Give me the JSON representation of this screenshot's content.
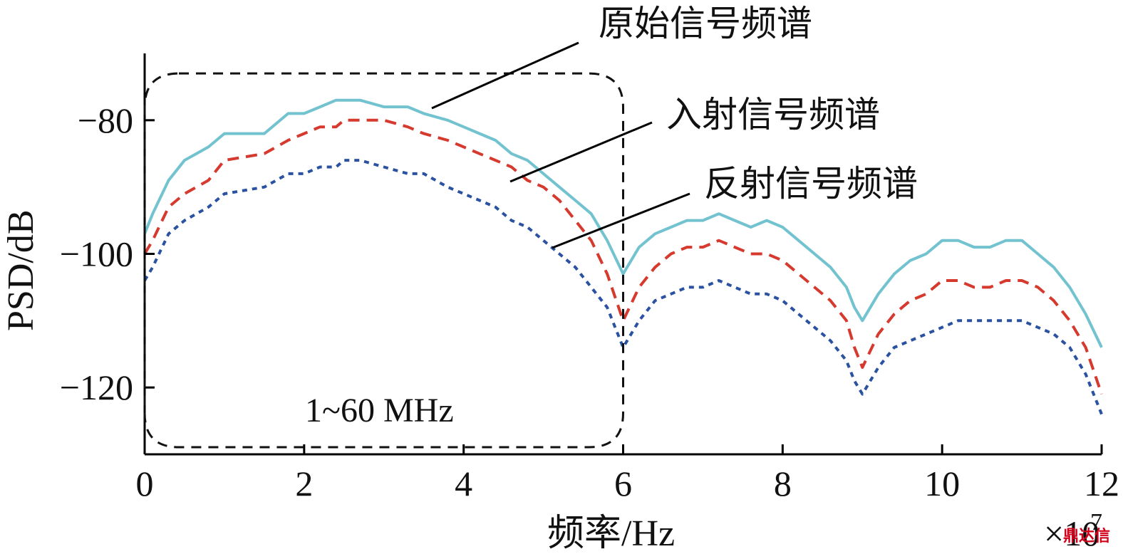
{
  "chart_data": {
    "type": "line",
    "xlabel": "频率/Hz",
    "ylabel": "PSD/dB",
    "x_multiplier": "×10",
    "x_multiplier_exp": "7",
    "xlim": [
      0,
      120000000
    ],
    "ylim": [
      -130,
      -70
    ],
    "xticks": [
      0,
      20000000,
      40000000,
      60000000,
      80000000,
      100000000,
      120000000
    ],
    "xtick_labels": [
      "0",
      "2",
      "4",
      "6",
      "8",
      "10",
      "12"
    ],
    "yticks": [
      -80,
      -100,
      -120
    ],
    "ytick_labels": [
      "−80",
      "−100",
      "−120"
    ],
    "grid": false,
    "series": [
      {
        "name": "原始信号频谱",
        "color": "#72c3cf",
        "style": "solid",
        "x": [
          0,
          1000000,
          3000000,
          5000000,
          8000000,
          10000000,
          15000000,
          18000000,
          20000000,
          22000000,
          24000000,
          25000000,
          27000000,
          30000000,
          33000000,
          35000000,
          38000000,
          40000000,
          42000000,
          44000000,
          46000000,
          48000000,
          50000000,
          52000000,
          54000000,
          56000000,
          58000000,
          60000000,
          62000000,
          64000000,
          66000000,
          68000000,
          70000000,
          72000000,
          74000000,
          76000000,
          78000000,
          80000000,
          82000000,
          84000000,
          86000000,
          88000000,
          89000000,
          90000000,
          92000000,
          94000000,
          96000000,
          98000000,
          100000000,
          102000000,
          104000000,
          106000000,
          108000000,
          110000000,
          112000000,
          114000000,
          116000000,
          118000000,
          120000000
        ],
        "y": [
          -97,
          -94,
          -89,
          -86,
          -84,
          -82,
          -82,
          -79,
          -79,
          -78,
          -77,
          -77,
          -77,
          -78,
          -78,
          -79,
          -80,
          -81,
          -82,
          -83,
          -85,
          -86,
          -88,
          -90,
          -92,
          -94,
          -98,
          -103,
          -99,
          -97,
          -96,
          -95,
          -95,
          -94,
          -95,
          -96,
          -95,
          -96,
          -98,
          -100,
          -102,
          -105,
          -108,
          -110,
          -106,
          -103,
          -101,
          -100,
          -98,
          -98,
          -99,
          -99,
          -98,
          -98,
          -100,
          -102,
          -105,
          -109,
          -114
        ]
      },
      {
        "name": "入射信号频谱",
        "color": "#d63a2f",
        "style": "dashed",
        "x": [
          0,
          1000000,
          3000000,
          5000000,
          8000000,
          10000000,
          15000000,
          18000000,
          20000000,
          22000000,
          24000000,
          25000000,
          27000000,
          30000000,
          33000000,
          35000000,
          38000000,
          40000000,
          42000000,
          44000000,
          46000000,
          48000000,
          50000000,
          52000000,
          54000000,
          56000000,
          58000000,
          60000000,
          62000000,
          64000000,
          66000000,
          68000000,
          70000000,
          72000000,
          74000000,
          76000000,
          78000000,
          80000000,
          82000000,
          84000000,
          86000000,
          88000000,
          89000000,
          90000000,
          92000000,
          94000000,
          96000000,
          98000000,
          100000000,
          102000000,
          104000000,
          106000000,
          108000000,
          110000000,
          112000000,
          114000000,
          116000000,
          118000000,
          120000000
        ],
        "y": [
          -100,
          -98,
          -93,
          -91,
          -89,
          -86,
          -85,
          -83,
          -82,
          -81,
          -81,
          -80,
          -80,
          -80,
          -81,
          -82,
          -83,
          -84,
          -85,
          -86,
          -87,
          -89,
          -90,
          -92,
          -95,
          -98,
          -103,
          -110,
          -105,
          -102,
          -100,
          -99,
          -99,
          -98,
          -99,
          -100,
          -100,
          -101,
          -103,
          -105,
          -107,
          -110,
          -114,
          -117,
          -112,
          -109,
          -107,
          -106,
          -104,
          -104,
          -105,
          -105,
          -104,
          -104,
          -105,
          -107,
          -110,
          -114,
          -121
        ]
      },
      {
        "name": "反射信号频谱",
        "color": "#2a52a0",
        "style": "dotted",
        "x": [
          0,
          1000000,
          3000000,
          5000000,
          8000000,
          10000000,
          15000000,
          18000000,
          20000000,
          22000000,
          24000000,
          25000000,
          27000000,
          30000000,
          33000000,
          35000000,
          38000000,
          40000000,
          42000000,
          44000000,
          46000000,
          48000000,
          50000000,
          52000000,
          54000000,
          56000000,
          58000000,
          60000000,
          62000000,
          64000000,
          66000000,
          68000000,
          70000000,
          72000000,
          74000000,
          76000000,
          78000000,
          80000000,
          82000000,
          84000000,
          86000000,
          88000000,
          89000000,
          90000000,
          92000000,
          94000000,
          96000000,
          98000000,
          100000000,
          102000000,
          104000000,
          106000000,
          108000000,
          110000000,
          112000000,
          114000000,
          116000000,
          118000000,
          120000000
        ],
        "y": [
          -104,
          -102,
          -97,
          -95,
          -93,
          -91,
          -90,
          -88,
          -88,
          -87,
          -87,
          -86,
          -86,
          -87,
          -88,
          -88,
          -90,
          -91,
          -92,
          -93,
          -95,
          -96,
          -98,
          -100,
          -102,
          -105,
          -108,
          -114,
          -110,
          -107,
          -106,
          -105,
          -105,
          -104,
          -105,
          -106,
          -106,
          -107,
          -109,
          -111,
          -113,
          -116,
          -119,
          -121,
          -117,
          -114,
          -113,
          -112,
          -111,
          -110,
          -110,
          -110,
          -110,
          -110,
          -111,
          -112,
          -114,
          -118,
          -124
        ]
      }
    ],
    "annotations": [
      {
        "text": "原始信号频谱",
        "points_to_series": 0
      },
      {
        "text": "入射信号频谱",
        "points_to_series": 1
      },
      {
        "text": "反射信号频谱",
        "points_to_series": 2
      },
      {
        "text": "1~60 MHz",
        "type": "highlight-box",
        "x_range": [
          0,
          60000000
        ],
        "y_range": [
          -130,
          -73
        ]
      }
    ]
  },
  "watermark": "鼎达信"
}
